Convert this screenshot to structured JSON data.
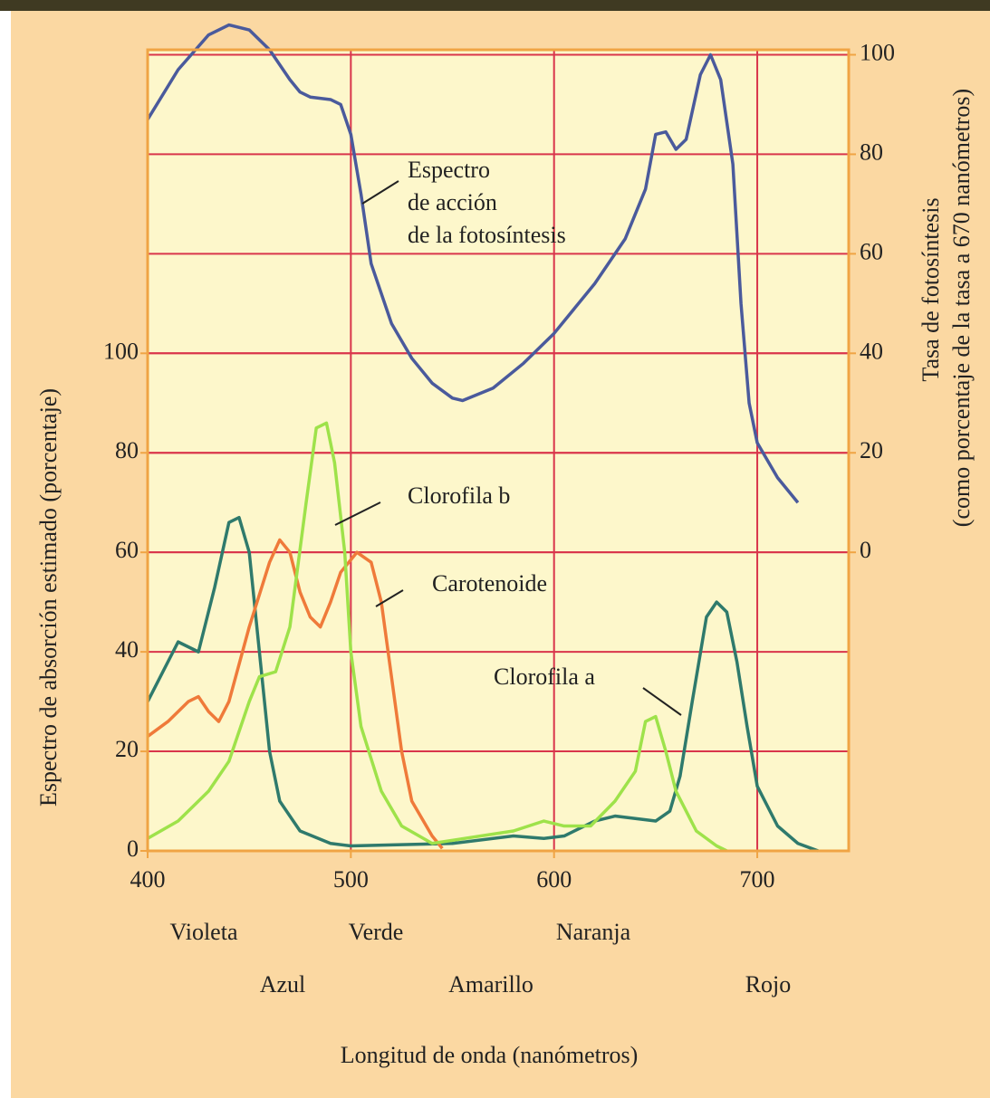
{
  "chart_data": {
    "type": "line",
    "xlabel": "Longitud de onda (nanómetros)",
    "ylabel": "Espectro de absorción estimado (porcentaje)",
    "y2label": "Tasa de fotosíntesis",
    "y2label_note": "(como porcentaje de la tasa a 670 nanómetros)",
    "xlim": [
      400,
      745
    ],
    "xticks": [
      400,
      500,
      600,
      700
    ],
    "ylim": [
      0,
      161
    ],
    "yticks": [
      0,
      20,
      40,
      60,
      80,
      100
    ],
    "y2lim": [
      -60,
      101
    ],
    "y2ticks": [
      0,
      20,
      40,
      60,
      80,
      100
    ],
    "grid": true,
    "band_labels": [
      "Violeta",
      "Azul",
      "Verde",
      "Amarillo",
      "Naranja",
      "Rojo"
    ],
    "series": [
      {
        "name": "Espectro\nde acción\nde la fotosíntesis",
        "color": "#4a5a9c",
        "axis": "y2",
        "x": [
          400,
          415,
          430,
          440,
          450,
          460,
          470,
          475,
          480,
          490,
          495,
          500,
          505,
          510,
          520,
          530,
          540,
          550,
          555,
          570,
          585,
          600,
          620,
          635,
          645,
          650,
          655,
          660,
          665,
          672,
          677,
          682,
          688,
          692,
          696,
          700,
          710,
          720
        ],
        "values": [
          87,
          97,
          104,
          106,
          105,
          101,
          95,
          92.5,
          91.5,
          91,
          90,
          84,
          72,
          58,
          46,
          39,
          34,
          31,
          30.5,
          33,
          38,
          44,
          54,
          63,
          73,
          84,
          84.5,
          81,
          83,
          96,
          100,
          95,
          78,
          50,
          30,
          22,
          15,
          10
        ]
      },
      {
        "name": "Clorofila a",
        "color": "#2f7a6c",
        "x": [
          400,
          415,
          425,
          433,
          440,
          445,
          450,
          455,
          460,
          465,
          475,
          490,
          500,
          550,
          580,
          595,
          605,
          620,
          630,
          640,
          650,
          657,
          662,
          668,
          675,
          680,
          685,
          690,
          695,
          700,
          710,
          720,
          730
        ],
        "values": [
          30,
          42,
          40,
          53,
          66,
          67,
          60,
          40,
          20,
          10,
          4,
          1.5,
          1,
          1.5,
          3,
          2.5,
          3,
          6,
          7,
          6.5,
          6,
          8,
          15,
          30,
          47,
          50,
          48,
          38,
          25,
          13,
          5,
          1.5,
          0
        ]
      },
      {
        "name": "Carotenoide",
        "color": "#ef7a3a",
        "x": [
          400,
          410,
          420,
          425,
          430,
          435,
          440,
          450,
          460,
          465,
          470,
          475,
          480,
          485,
          490,
          495,
          503,
          510,
          515,
          520,
          525,
          530,
          540,
          545
        ],
        "values": [
          23,
          26,
          30,
          31,
          28,
          26,
          30,
          45,
          58,
          62.5,
          60,
          52,
          47,
          45,
          50,
          56,
          60,
          58,
          50,
          35,
          20,
          10,
          3,
          0.5
        ]
      },
      {
        "name": "Clorofila b",
        "color": "#9ee24a",
        "x": [
          400,
          415,
          430,
          440,
          450,
          455,
          463,
          470,
          478,
          483,
          488,
          492,
          497,
          500,
          505,
          515,
          525,
          540,
          580,
          595,
          605,
          618,
          630,
          640,
          645,
          650,
          655,
          660,
          670,
          680,
          685
        ],
        "values": [
          2.5,
          6,
          12,
          18,
          30,
          35,
          36,
          45,
          70,
          85,
          86,
          78,
          60,
          40,
          25,
          12,
          5,
          1.5,
          4,
          6,
          5,
          5,
          10,
          16,
          26,
          27,
          20,
          12,
          4,
          1,
          0
        ]
      }
    ]
  }
}
